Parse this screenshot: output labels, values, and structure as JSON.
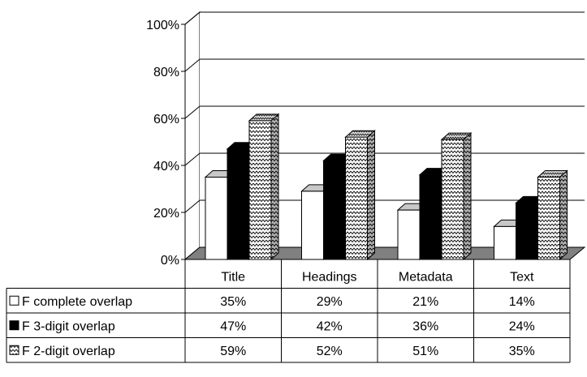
{
  "chart_data": {
    "type": "bar",
    "categories": [
      "Title",
      "Headings",
      "Metadata",
      "Text"
    ],
    "series": [
      {
        "name": "F complete overlap",
        "values": [
          35,
          29,
          21,
          14
        ],
        "labels": [
          "35%",
          "29%",
          "21%",
          "14%"
        ],
        "fill": "#ffffff"
      },
      {
        "name": "F 3-digit overlap",
        "values": [
          47,
          42,
          36,
          24
        ],
        "labels": [
          "47%",
          "42%",
          "36%",
          "24%"
        ],
        "fill": "#000000"
      },
      {
        "name": "F 2-digit overlap",
        "values": [
          59,
          52,
          51,
          35
        ],
        "labels": [
          "59%",
          "52%",
          "51%",
          "35%"
        ],
        "fill": "pattern"
      }
    ],
    "ylim": [
      0,
      100
    ],
    "yticks": [
      "0%",
      "20%",
      "40%",
      "60%",
      "80%",
      "100%"
    ],
    "three_d": true,
    "gridlines": true,
    "data_table": true,
    "floor_color": "#808080"
  }
}
